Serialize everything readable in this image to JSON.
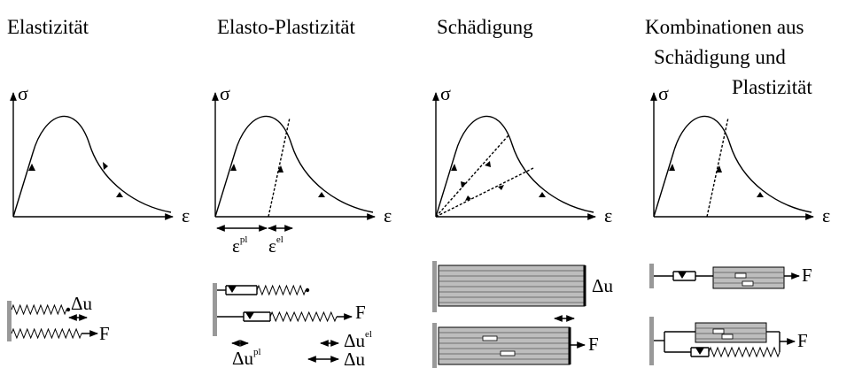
{
  "panels": [
    {
      "title": [
        "Elastizität"
      ],
      "y_axis": "σ",
      "x_axis": "ε",
      "model_labels": [
        {
          "base": "Δu"
        },
        {
          "base": "F"
        }
      ]
    },
    {
      "title": [
        "Elasto-Plastizität"
      ],
      "y_axis": "σ",
      "x_axis": "ε",
      "strain_labels": [
        {
          "base": "ε",
          "sup": "pl"
        },
        {
          "base": "ε",
          "sup": "el"
        }
      ],
      "model_labels": [
        {
          "base": "F"
        },
        {
          "base": "Δu",
          "sup": "pl"
        },
        {
          "base": "Δu",
          "sup": "el"
        },
        {
          "base": "Δu"
        }
      ]
    },
    {
      "title": [
        "Schädigung"
      ],
      "y_axis": "σ",
      "x_axis": "ε",
      "model_labels": [
        {
          "base": "Δu"
        },
        {
          "base": "F"
        }
      ]
    },
    {
      "title": [
        "Kombinationen aus",
        "Schädigung und",
        "Plastizität"
      ],
      "y_axis": "σ",
      "x_axis": "ε",
      "model_labels": [
        {
          "base": "F"
        },
        {
          "base": "F"
        }
      ]
    }
  ]
}
